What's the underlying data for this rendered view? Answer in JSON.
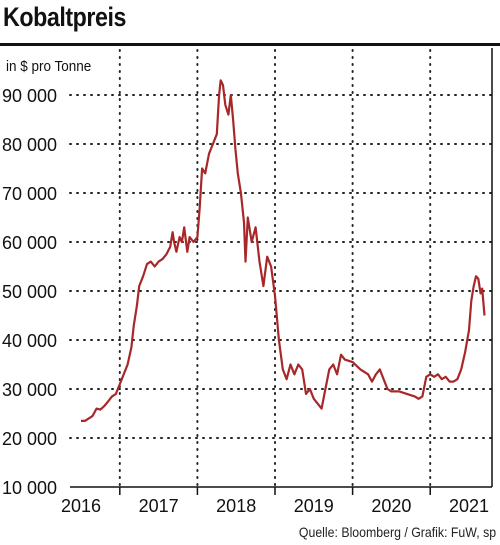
{
  "header": {
    "title": "Kobaltpreis"
  },
  "footer": {
    "source": "Quelle: Bloomberg / Grafik: FuW, sp"
  },
  "colors": {
    "line": "#a8282a",
    "grid": "#222222",
    "axis": "#111111"
  },
  "chart_data": {
    "type": "line",
    "title": "Kobaltpreis",
    "ylabel": "in $ pro Tonne",
    "xlabel": "",
    "ylim": [
      10000,
      95000
    ],
    "xlim": [
      2015.9,
      2021.2
    ],
    "y_ticks": [
      {
        "value": 10000,
        "label": "10 000"
      },
      {
        "value": 20000,
        "label": "20 000"
      },
      {
        "value": 30000,
        "label": "30 000"
      },
      {
        "value": 40000,
        "label": "40 000"
      },
      {
        "value": 50000,
        "label": "50 000"
      },
      {
        "value": 60000,
        "label": "60 000"
      },
      {
        "value": 70000,
        "label": "70 000"
      },
      {
        "value": 80000,
        "label": "80 000"
      },
      {
        "value": 90000,
        "label": "90 000"
      }
    ],
    "x_ticks": [
      {
        "value": 2016,
        "label": "2016"
      },
      {
        "value": 2017,
        "label": "2017"
      },
      {
        "value": 2018,
        "label": "2018"
      },
      {
        "value": 2019,
        "label": "2019"
      },
      {
        "value": 2020,
        "label": "2020"
      },
      {
        "value": 2021,
        "label": "2021"
      }
    ],
    "grid": true,
    "series": [
      {
        "color": "#a8282a",
        "points": [
          [
            2016.0,
            23500
          ],
          [
            2016.05,
            23500
          ],
          [
            2016.1,
            24000
          ],
          [
            2016.15,
            24500
          ],
          [
            2016.2,
            26000
          ],
          [
            2016.25,
            25800
          ],
          [
            2016.3,
            26500
          ],
          [
            2016.35,
            27500
          ],
          [
            2016.4,
            28500
          ],
          [
            2016.45,
            29000
          ],
          [
            2016.5,
            31000
          ],
          [
            2016.55,
            33000
          ],
          [
            2016.6,
            35000
          ],
          [
            2016.65,
            38500
          ],
          [
            2016.68,
            43000
          ],
          [
            2016.72,
            47000
          ],
          [
            2016.75,
            51000
          ],
          [
            2016.8,
            53000
          ],
          [
            2016.85,
            55500
          ],
          [
            2016.9,
            56000
          ],
          [
            2016.95,
            55000
          ],
          [
            2017.0,
            56000
          ],
          [
            2017.05,
            56500
          ],
          [
            2017.1,
            57500
          ],
          [
            2017.15,
            59000
          ],
          [
            2017.18,
            62000
          ],
          [
            2017.2,
            60000
          ],
          [
            2017.23,
            58000
          ],
          [
            2017.27,
            61000
          ],
          [
            2017.3,
            60000
          ],
          [
            2017.33,
            63000
          ],
          [
            2017.37,
            58000
          ],
          [
            2017.4,
            61000
          ],
          [
            2017.45,
            60000
          ],
          [
            2017.5,
            61000
          ],
          [
            2017.53,
            67000
          ],
          [
            2017.56,
            75000
          ],
          [
            2017.6,
            74000
          ],
          [
            2017.65,
            78000
          ],
          [
            2017.7,
            80000
          ],
          [
            2017.75,
            82000
          ],
          [
            2017.78,
            90000
          ],
          [
            2017.8,
            93000
          ],
          [
            2017.83,
            92000
          ],
          [
            2017.86,
            88000
          ],
          [
            2017.9,
            86000
          ],
          [
            2017.93,
            90000
          ],
          [
            2017.96,
            85000
          ],
          [
            2017.99,
            79000
          ],
          [
            2018.02,
            74000
          ],
          [
            2018.06,
            70000
          ],
          [
            2018.1,
            64000
          ],
          [
            2018.12,
            56000
          ],
          [
            2018.15,
            65000
          ],
          [
            2018.2,
            60000
          ],
          [
            2018.25,
            63000
          ],
          [
            2018.3,
            56000
          ],
          [
            2018.35,
            51000
          ],
          [
            2018.4,
            57000
          ],
          [
            2018.45,
            55000
          ],
          [
            2018.5,
            49000
          ],
          [
            2018.55,
            40000
          ],
          [
            2018.6,
            34000
          ],
          [
            2018.65,
            32000
          ],
          [
            2018.7,
            35000
          ],
          [
            2018.75,
            33000
          ],
          [
            2018.8,
            35000
          ],
          [
            2018.85,
            34000
          ],
          [
            2018.9,
            29000
          ],
          [
            2018.95,
            30000
          ],
          [
            2019.0,
            28000
          ],
          [
            2019.05,
            27000
          ],
          [
            2019.1,
            26000
          ],
          [
            2019.15,
            30000
          ],
          [
            2019.2,
            34000
          ],
          [
            2019.25,
            35000
          ],
          [
            2019.3,
            33000
          ],
          [
            2019.35,
            37000
          ],
          [
            2019.4,
            36000
          ],
          [
            2019.5,
            35500
          ],
          [
            2019.6,
            34000
          ],
          [
            2019.7,
            33000
          ],
          [
            2019.75,
            31500
          ],
          [
            2019.8,
            33000
          ],
          [
            2019.85,
            34000
          ],
          [
            2019.9,
            32000
          ],
          [
            2019.95,
            30000
          ],
          [
            2020.0,
            29500
          ],
          [
            2020.1,
            29500
          ],
          [
            2020.2,
            29000
          ],
          [
            2020.3,
            28500
          ],
          [
            2020.35,
            28000
          ],
          [
            2020.4,
            28500
          ],
          [
            2020.45,
            32500
          ],
          [
            2020.5,
            33000
          ],
          [
            2020.55,
            32500
          ],
          [
            2020.6,
            33000
          ],
          [
            2020.65,
            32000
          ],
          [
            2020.7,
            32500
          ],
          [
            2020.75,
            31500
          ],
          [
            2020.8,
            31500
          ],
          [
            2020.85,
            32000
          ],
          [
            2020.9,
            34000
          ],
          [
            2020.95,
            37500
          ],
          [
            2021.0,
            42000
          ],
          [
            2021.03,
            48000
          ],
          [
            2021.06,
            51000
          ],
          [
            2021.09,
            53000
          ],
          [
            2021.12,
            52500
          ],
          [
            2021.15,
            49500
          ],
          [
            2021.17,
            50500
          ],
          [
            2021.2,
            45000
          ]
        ]
      }
    ]
  }
}
